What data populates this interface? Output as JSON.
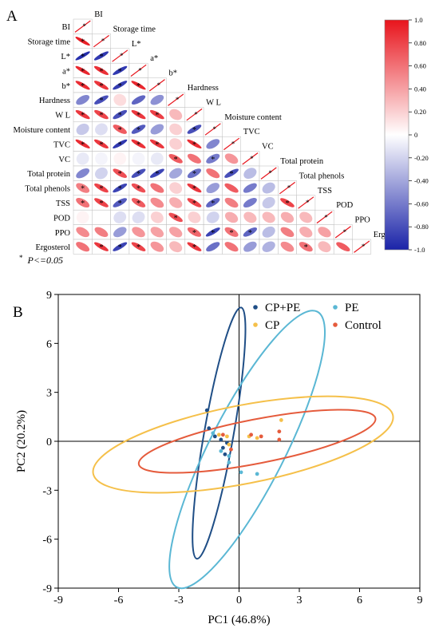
{
  "panel_a": {
    "letter": "A",
    "variables": [
      "BI",
      "Storage time",
      "L*",
      "a*",
      "b*",
      "Hardness",
      "W L",
      "Moisture content",
      "TVC",
      "VC",
      "Total protein",
      "Total phenols",
      "TSS",
      "POD",
      "PPO",
      "Ergosterol"
    ],
    "colorbar": {
      "ticks": [
        "1.0",
        "0.80",
        "0.60",
        "0.40",
        "0.20",
        "0",
        "-0.20",
        "-0.40",
        "-0.60",
        "-0.80",
        "-1.0"
      ],
      "min": -1.0,
      "max": 1.0,
      "colors": {
        "positive": "#e8141c",
        "neutral": "#ffffff",
        "negative": "#1a23a8"
      }
    },
    "note_star": "*",
    "note_text": "P<=0.05"
  },
  "chart_data": [
    {
      "type": "heatmap",
      "subtype": "correlation-ellipse-lower-triangle",
      "variables": [
        "BI",
        "Storage time",
        "L*",
        "a*",
        "b*",
        "Hardness",
        "W L",
        "Moisture content",
        "TVC",
        "VC",
        "Total protein",
        "Total phenols",
        "TSS",
        "POD",
        "PPO",
        "Ergosterol"
      ],
      "rows": [
        [
          1.0
        ],
        [
          0.95,
          1.0
        ],
        [
          -0.95,
          -0.9,
          1.0
        ],
        [
          0.92,
          0.88,
          -0.9,
          1.0
        ],
        [
          0.9,
          0.86,
          -0.88,
          0.92,
          1.0
        ],
        [
          -0.55,
          -0.8,
          0.15,
          -0.7,
          -0.5,
          1.0
        ],
        [
          0.85,
          0.8,
          -0.8,
          0.85,
          0.82,
          0.3,
          1.0
        ],
        [
          -0.25,
          -0.15,
          0.7,
          -0.75,
          -0.45,
          0.2,
          -0.8,
          1.0
        ],
        [
          0.9,
          0.85,
          -0.9,
          0.88,
          0.85,
          0.2,
          0.9,
          -0.55,
          1.0
        ],
        [
          -0.1,
          -0.05,
          0.05,
          -0.05,
          -0.1,
          0.7,
          0.6,
          -0.6,
          0.45,
          1.0
        ],
        [
          -0.55,
          -0.2,
          0.75,
          -0.8,
          -0.85,
          -0.4,
          -0.65,
          0.6,
          -0.8,
          -0.3,
          1.0
        ],
        [
          0.55,
          0.8,
          -0.85,
          0.75,
          0.6,
          0.2,
          0.85,
          -0.45,
          0.7,
          -0.6,
          -0.3,
          1.0
        ],
        [
          0.6,
          0.8,
          -0.75,
          0.7,
          0.5,
          0.35,
          0.8,
          -0.7,
          0.55,
          -0.6,
          -0.25,
          0.8,
          1.0
        ],
        [
          0.05,
          0.0,
          -0.15,
          -0.15,
          0.2,
          0.75,
          0.2,
          -0.2,
          0.35,
          0.3,
          0.3,
          0.35,
          0.3,
          1.0
        ],
        [
          0.5,
          0.55,
          -0.45,
          0.45,
          0.4,
          0.4,
          0.65,
          -0.85,
          0.6,
          -0.7,
          -0.3,
          0.55,
          0.35,
          0.4,
          1.0
        ],
        [
          0.6,
          0.85,
          -0.85,
          0.8,
          0.45,
          0.3,
          0.85,
          -0.65,
          0.6,
          -0.45,
          -0.35,
          0.5,
          0.6,
          0.3,
          0.7,
          1.0
        ]
      ],
      "significant": [
        [
          1
        ],
        [
          1,
          1
        ],
        [
          1,
          1,
          1
        ],
        [
          1,
          1,
          1,
          1
        ],
        [
          1,
          1,
          1,
          1,
          1
        ],
        [
          0,
          1,
          0,
          0,
          0,
          1
        ],
        [
          1,
          1,
          1,
          1,
          1,
          0,
          1
        ],
        [
          0,
          0,
          1,
          1,
          0,
          0,
          1,
          1
        ],
        [
          1,
          1,
          1,
          1,
          1,
          0,
          1,
          0,
          1
        ],
        [
          0,
          0,
          0,
          0,
          0,
          1,
          0,
          1,
          0,
          1
        ],
        [
          0,
          0,
          1,
          1,
          1,
          0,
          1,
          0,
          1,
          0,
          1
        ],
        [
          1,
          1,
          1,
          1,
          0,
          0,
          1,
          0,
          0,
          0,
          0,
          1
        ],
        [
          1,
          1,
          1,
          1,
          0,
          0,
          1,
          1,
          0,
          0,
          0,
          1,
          1
        ],
        [
          0,
          0,
          0,
          0,
          0,
          1,
          0,
          0,
          0,
          0,
          0,
          0,
          0,
          1
        ],
        [
          0,
          0,
          0,
          0,
          0,
          0,
          1,
          1,
          1,
          1,
          0,
          0,
          0,
          0,
          1
        ],
        [
          0,
          1,
          1,
          1,
          0,
          0,
          1,
          0,
          0,
          0,
          0,
          0,
          1,
          0,
          0,
          1
        ]
      ]
    },
    {
      "type": "scatter",
      "letter": "B",
      "xlabel": "PC1 (46.8%)",
      "ylabel": "PC2 (20.2%)",
      "xlim": [
        -9,
        9
      ],
      "ylim": [
        -9,
        9
      ],
      "xticks": [
        -9,
        -6,
        -3,
        0,
        3,
        6,
        9
      ],
      "yticks": [
        -9,
        -6,
        -3,
        0,
        3,
        6,
        9
      ],
      "legend_position": "top-right",
      "series": [
        {
          "name": "CP+PE",
          "color": "#1f4e86",
          "points": [
            [
              -1.6,
              1.9
            ],
            [
              -1.5,
              0.8
            ],
            [
              -1.2,
              0.3
            ],
            [
              -0.9,
              0.1
            ],
            [
              -0.6,
              -0.1
            ],
            [
              -0.8,
              -0.4
            ],
            [
              -0.7,
              -0.8
            ]
          ],
          "ellipse": {
            "cx": -1.0,
            "cy": 0.5,
            "rx": 6.35,
            "ry": 0.9,
            "angle": -80
          }
        },
        {
          "name": "PE",
          "color": "#5ab7d4",
          "points": [
            [
              -1.3,
              0.5
            ],
            [
              -0.9,
              -0.6
            ],
            [
              -0.5,
              -0.9
            ],
            [
              -0.5,
              -1.3
            ],
            [
              0.1,
              -1.9
            ],
            [
              0.9,
              -2.0
            ]
          ],
          "ellipse": {
            "cx": 0.4,
            "cy": -0.5,
            "rx": 7.7,
            "ry": 2.3,
            "angle": -63
          }
        },
        {
          "name": "CP",
          "color": "#f5c04a",
          "points": [
            [
              -1.0,
              0.4
            ],
            [
              -0.6,
              0.3
            ],
            [
              -0.5,
              -0.2
            ],
            [
              0.5,
              0.3
            ],
            [
              2.1,
              1.3
            ],
            [
              0.9,
              0.2
            ]
          ],
          "ellipse": {
            "cx": 0.2,
            "cy": -0.2,
            "rx": 7.6,
            "ry": 2.4,
            "angle": -11
          }
        },
        {
          "name": "Control",
          "color": "#e55b3c",
          "points": [
            [
              -0.8,
              0.4
            ],
            [
              0.6,
              0.4
            ],
            [
              1.1,
              0.3
            ],
            [
              2.0,
              0.6
            ],
            [
              2.0,
              0.1
            ],
            [
              -0.4,
              -0.5
            ]
          ],
          "ellipse": {
            "cx": 0.9,
            "cy": 0.0,
            "rx": 6.0,
            "ry": 1.35,
            "angle": -11
          }
        }
      ]
    }
  ]
}
